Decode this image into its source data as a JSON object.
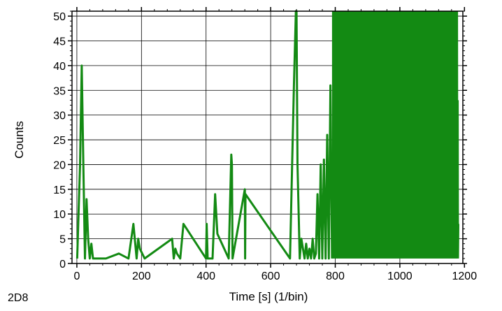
{
  "chart_data": {
    "type": "line",
    "title": "",
    "xlabel": "Time [s] (1/bin)",
    "ylabel": "Counts",
    "corner_label": "2D8",
    "xlim": [
      -15,
      1195
    ],
    "ylim": [
      0,
      51
    ],
    "x_ticks": [
      0,
      200,
      400,
      600,
      800,
      1000,
      1200
    ],
    "y_ticks": [
      0,
      5,
      10,
      15,
      20,
      25,
      30,
      35,
      40,
      45,
      50
    ],
    "grid": true,
    "line_color": "#138a13",
    "series": [
      {
        "x": [
          1,
          10,
          15,
          20,
          25,
          30,
          35,
          40,
          45,
          50,
          55,
          90,
          130,
          160,
          175,
          185,
          190,
          195,
          210,
          295,
          300,
          305,
          310,
          320,
          330,
          400,
          402,
          405,
          420,
          428,
          435,
          470,
          478,
          480,
          482,
          520,
          521,
          522,
          660,
          672,
          678,
          680,
          683,
          690,
          695,
          705,
          710,
          715,
          720,
          725,
          730,
          735,
          740,
          745,
          750,
          755,
          760,
          765,
          770,
          775,
          780,
          785,
          790
        ],
        "y": [
          1,
          20,
          40,
          20,
          1,
          13,
          5,
          1,
          4,
          1,
          1,
          1,
          2,
          1,
          8,
          1,
          5,
          3,
          1,
          5,
          1,
          3,
          2,
          1,
          8,
          1,
          8,
          1,
          1,
          14,
          6,
          1,
          22,
          20,
          1,
          15,
          1,
          14,
          1,
          36,
          51,
          51,
          20,
          1,
          5,
          1,
          4,
          1,
          3,
          1,
          5,
          1,
          2,
          14,
          1,
          20,
          1,
          21,
          1,
          26,
          1,
          36,
          1
        ]
      }
    ],
    "dense_region": {
      "x_start": 790,
      "x_end": 1178,
      "y_min": 1,
      "y_max": 51
    },
    "tail": {
      "x": [
        1178,
        1179,
        1180,
        1181,
        1182
      ],
      "y": [
        51,
        1,
        33,
        1,
        8
      ]
    }
  }
}
